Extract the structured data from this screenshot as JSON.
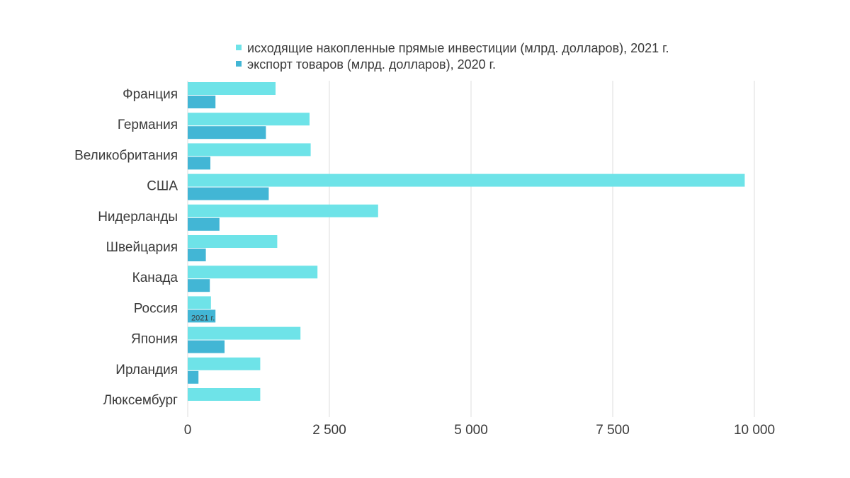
{
  "chart_data": {
    "type": "bar",
    "orientation": "horizontal",
    "title": "",
    "xlabel": "",
    "ylabel": "",
    "categories": [
      "Франция",
      "Германия",
      "Великобритания",
      "США",
      "Нидерланды",
      "Швейцария",
      "Канада",
      "Россия",
      "Япония",
      "Ирландия",
      "Люксембург"
    ],
    "series": [
      {
        "name": "исходящие накопленные  прямые инвестиции (млрд. долларов), 2021 г.",
        "color": "#6ee3e8",
        "values": [
          1550,
          2150,
          2170,
          9830,
          3360,
          1580,
          2290,
          410,
          1990,
          1280,
          1280
        ]
      },
      {
        "name": "экспорт товаров (млрд. долларов), 2020 г.",
        "color": "#42b6d5",
        "values": [
          490,
          1380,
          400,
          1430,
          560,
          320,
          390,
          490,
          650,
          190,
          0
        ]
      }
    ],
    "xlim": [
      0,
      10000
    ],
    "xticks": [
      0,
      2500,
      5000,
      7500,
      10000
    ],
    "xtick_labels": [
      "0",
      "2 500",
      "5 000",
      "7 500",
      "10 000"
    ],
    "grid": "vertical",
    "legend_position": "top",
    "annotations": [
      {
        "text": "2021 г.",
        "category": "Россия"
      }
    ]
  }
}
